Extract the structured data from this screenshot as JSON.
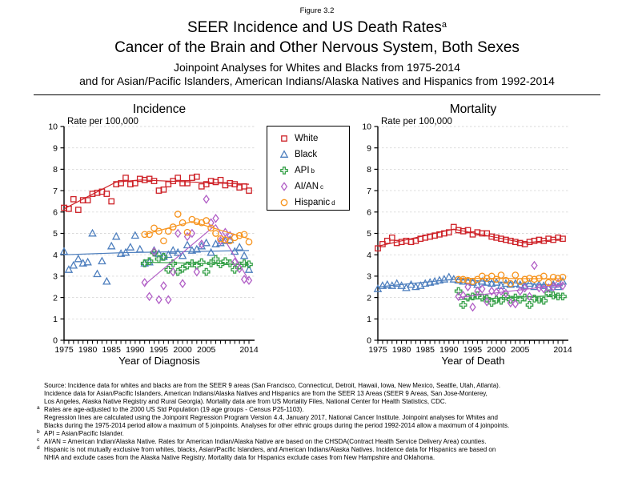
{
  "figure_label": "Figure 3.2",
  "title": {
    "line1": "SEER Incidence and US Death Rates",
    "line1_sup": "a",
    "line2": "Cancer of the Brain and Other Nervous System, Both Sexes",
    "line3": "Joinpoint Analyses for Whites and Blacks from 1975-2014",
    "line4": "and for Asian/Pacific Islanders, American Indians/Alaska Natives and Hispanics from 1992-2014"
  },
  "colors": {
    "white_series": "#CE2127",
    "black_series": "#4E7FBE",
    "api_series": "#36A048",
    "aian_series": "#B15FC6",
    "hispanic_series": "#F7941E",
    "grid": "#D9D9D9",
    "axis": "#000000"
  },
  "legend": {
    "items": [
      {
        "label": "White",
        "sup": "",
        "marker": "square",
        "color_key": "white_series"
      },
      {
        "label": "Black",
        "sup": "",
        "marker": "triangle",
        "color_key": "black_series"
      },
      {
        "label": "API",
        "sup": "b",
        "marker": "plus",
        "color_key": "api_series"
      },
      {
        "label": "AI/AN",
        "sup": "c",
        "marker": "diamond",
        "color_key": "aian_series"
      },
      {
        "label": "Hispanic",
        "sup": "d",
        "marker": "circle",
        "color_key": "hispanic_series"
      }
    ]
  },
  "chart_data": [
    {
      "type": "scatter",
      "id": "incidence",
      "title": "Incidence",
      "rate_label": "Rate per 100,000",
      "xlabel": "Year of Diagnosis",
      "xlim": [
        1975,
        2014
      ],
      "ylim": [
        0,
        10
      ],
      "yticks": [
        0,
        1,
        2,
        3,
        4,
        5,
        6,
        7,
        8,
        9,
        10
      ],
      "xtick_labels": [
        1975,
        1980,
        1985,
        1990,
        1995,
        2000,
        2005,
        2014
      ],
      "grid": "horizontal",
      "legend_position": "outside-right",
      "series": [
        {
          "name": "White",
          "marker": "square",
          "color_key": "white_series",
          "start_year": 1975,
          "values": [
            6.2,
            6.15,
            6.6,
            6.1,
            6.55,
            6.55,
            6.85,
            6.9,
            6.95,
            6.85,
            6.5,
            7.3,
            7.35,
            7.6,
            7.3,
            7.35,
            7.55,
            7.5,
            7.55,
            7.45,
            7.0,
            7.05,
            7.3,
            7.45,
            7.6,
            7.35,
            7.35,
            7.6,
            7.65,
            7.2,
            7.3,
            7.45,
            7.4,
            7.5,
            7.25,
            7.35,
            7.3,
            7.15,
            7.2,
            7.0
          ],
          "trend": [
            [
              1975,
              6.15
            ],
            [
              1986,
              7.4
            ],
            [
              1991,
              7.5
            ],
            [
              2014,
              7.3
            ]
          ]
        },
        {
          "name": "Black",
          "marker": "triangle",
          "color_key": "black_series",
          "start_year": 1975,
          "values": [
            4.15,
            3.3,
            3.5,
            3.8,
            3.6,
            3.65,
            5.0,
            3.1,
            3.7,
            2.75,
            4.4,
            4.85,
            4.05,
            4.1,
            4.35,
            4.9,
            4.25,
            3.6,
            3.65,
            4.2,
            4.05,
            3.9,
            4.0,
            4.2,
            4.1,
            3.95,
            4.45,
            4.2,
            4.25,
            4.4,
            4.55,
            4.1,
            4.5,
            4.55,
            4.65,
            4.7,
            4.15,
            4.35,
            3.95,
            3.3
          ],
          "trend": [
            [
              1975,
              4.0
            ],
            [
              1988,
              4.1
            ],
            [
              2014,
              4.2
            ]
          ]
        },
        {
          "name": "API",
          "marker": "plus",
          "color_key": "api_series",
          "start_year": 1992,
          "values": [
            3.6,
            3.7,
            4.1,
            3.8,
            3.9,
            3.3,
            3.6,
            3.2,
            3.35,
            3.5,
            3.6,
            3.5,
            3.65,
            3.2,
            3.6,
            3.8,
            3.55,
            3.7,
            3.6,
            3.3,
            3.5,
            3.6,
            3.55
          ],
          "trend": [
            [
              1992,
              3.65
            ],
            [
              2014,
              3.55
            ]
          ]
        },
        {
          "name": "AI/AN",
          "marker": "diamond",
          "color_key": "aian_series",
          "start_year": 1992,
          "values": [
            2.7,
            2.05,
            4.15,
            1.9,
            2.55,
            1.9,
            3.2,
            5.0,
            2.65,
            4.85,
            5.0,
            3.2,
            4.5,
            6.6,
            5.5,
            5.7,
            4.65,
            5.05,
            4.9,
            3.65,
            3.35,
            2.85,
            2.8
          ],
          "trend": [
            [
              1992,
              2.6
            ],
            [
              2007,
              5.4
            ],
            [
              2014,
              2.8
            ]
          ]
        },
        {
          "name": "Hispanic",
          "marker": "circle",
          "color_key": "hispanic_series",
          "start_year": 1992,
          "values": [
            4.95,
            4.95,
            5.25,
            5.1,
            4.65,
            5.1,
            5.3,
            5.9,
            5.5,
            5.05,
            5.65,
            5.55,
            5.5,
            5.6,
            5.25,
            5.0,
            4.75,
            4.7,
            4.65,
            4.8,
            4.9,
            4.95,
            4.6
          ],
          "trend": [
            [
              1992,
              4.95
            ],
            [
              2002,
              5.55
            ],
            [
              2014,
              4.75
            ]
          ]
        }
      ]
    },
    {
      "type": "scatter",
      "id": "mortality",
      "title": "Mortality",
      "rate_label": "Rate per 100,000",
      "xlabel": "Year of Death",
      "xlim": [
        1975,
        2014
      ],
      "ylim": [
        0,
        10
      ],
      "yticks": [
        0,
        1,
        2,
        3,
        4,
        5,
        6,
        7,
        8,
        9,
        10
      ],
      "xtick_labels": [
        1975,
        1980,
        1985,
        1990,
        1995,
        2000,
        2005,
        2014
      ],
      "grid": "horizontal",
      "legend_position": "none",
      "series": [
        {
          "name": "White",
          "marker": "square",
          "color_key": "white_series",
          "start_year": 1975,
          "values": [
            4.3,
            4.5,
            4.65,
            4.8,
            4.55,
            4.6,
            4.65,
            4.6,
            4.65,
            4.75,
            4.8,
            4.85,
            4.9,
            4.95,
            5.0,
            5.05,
            5.3,
            5.15,
            5.1,
            5.15,
            4.95,
            5.05,
            5.0,
            5.0,
            4.85,
            4.8,
            4.75,
            4.7,
            4.65,
            4.6,
            4.55,
            4.5,
            4.6,
            4.65,
            4.7,
            4.65,
            4.75,
            4.7,
            4.8,
            4.75
          ],
          "trend": [
            [
              1975,
              4.4
            ],
            [
              1991,
              5.2
            ],
            [
              2006,
              4.55
            ],
            [
              2014,
              4.75
            ]
          ]
        },
        {
          "name": "Black",
          "marker": "triangle",
          "color_key": "black_series",
          "start_year": 1975,
          "values": [
            2.4,
            2.55,
            2.6,
            2.55,
            2.65,
            2.55,
            2.45,
            2.6,
            2.5,
            2.55,
            2.65,
            2.7,
            2.75,
            2.8,
            2.85,
            2.95,
            2.85,
            2.8,
            2.75,
            2.75,
            2.7,
            2.6,
            2.75,
            2.7,
            2.65,
            2.7,
            2.55,
            2.65,
            2.6,
            2.65,
            2.6,
            2.55,
            2.65,
            2.5,
            2.6,
            2.55,
            2.45,
            2.6,
            2.5,
            2.75
          ],
          "trend": [
            [
              1975,
              2.5
            ],
            [
              1991,
              2.85
            ],
            [
              2014,
              2.55
            ]
          ]
        },
        {
          "name": "API",
          "marker": "plus",
          "color_key": "api_series",
          "start_year": 1992,
          "values": [
            2.3,
            1.65,
            2.0,
            2.05,
            2.1,
            2.0,
            1.95,
            1.75,
            1.9,
            1.85,
            2.05,
            1.9,
            2.0,
            1.9,
            2.0,
            1.65,
            1.95,
            1.9,
            1.85,
            2.2,
            2.1,
            2.05,
            2.05
          ],
          "trend": [
            [
              1992,
              1.9
            ],
            [
              2014,
              2.1
            ]
          ]
        },
        {
          "name": "AI/AN",
          "marker": "diamond",
          "color_key": "aian_series",
          "start_year": 1992,
          "values": [
            2.05,
            2.1,
            2.5,
            1.55,
            2.3,
            2.4,
            1.8,
            2.3,
            2.25,
            2.3,
            2.2,
            1.75,
            1.7,
            2.3,
            2.45,
            2.05,
            3.5,
            2.45,
            2.4,
            2.45,
            2.5,
            2.65,
            2.55
          ],
          "trend": [
            [
              1992,
              2.0
            ],
            [
              2014,
              2.6
            ]
          ]
        },
        {
          "name": "Hispanic",
          "marker": "circle",
          "color_key": "hispanic_series",
          "start_year": 1992,
          "values": [
            2.85,
            2.85,
            2.8,
            2.75,
            2.85,
            3.0,
            2.9,
            3.0,
            2.85,
            3.05,
            2.8,
            2.65,
            3.05,
            2.75,
            2.85,
            2.9,
            2.85,
            2.9,
            3.0,
            2.7,
            2.95,
            2.9,
            2.95
          ],
          "trend": [
            [
              1992,
              2.9
            ],
            [
              2014,
              2.88
            ]
          ]
        }
      ]
    }
  ],
  "footnotes": [
    {
      "sup": "",
      "text": "Source:  Incidence data for whites and blacks are from the SEER 9 areas (San Francisco, Connecticut, Detroit, Hawaii, Iowa, New Mexico, Seattle, Utah, Atlanta)."
    },
    {
      "sup": "",
      "text": "Incidence data for Asian/Pacific Islanders, American Indians/Alaska Natives and Hispanics are from the SEER 13 Areas (SEER 9 Areas, San Jose-Monterey,"
    },
    {
      "sup": "",
      "text": "Los Angeles, Alaska Native Registry and Rural Georgia).  Mortality data are from US Mortality Files, National Center for Health Statistics, CDC."
    },
    {
      "sup": "a",
      "text": "Rates are age-adjusted to the 2000 US Std Population (19 age groups - Census P25-1103)."
    },
    {
      "sup": "",
      "text": "Regression lines are calculated using the Joinpoint Regression Program Version 4.4, January 2017, National Cancer Institute.  Joinpoint analyses for Whites and"
    },
    {
      "sup": "",
      "text": "Blacks during the 1975-2014 period allow a maximum of 5 joinpoints. Analyses for other ethnic groups during the period 1992-2014 allow a maximum of 4 joinpoints."
    },
    {
      "sup": "b",
      "text": "API = Asian/Pacific Islander."
    },
    {
      "sup": "c",
      "text": "AI/AN = American Indian/Alaska Native.  Rates for American Indian/Alaska Native are based on the CHSDA(Contract Health Service Delivery Area) counties."
    },
    {
      "sup": "d",
      "text": "Hispanic is not mutually exclusive from whites, blacks, Asian/Pacific Islanders, and American Indians/Alaska Natives.  Incidence data for Hispanics are based on"
    },
    {
      "sup": "",
      "text": "NHIA and exclude cases from the Alaska Native Registry.  Mortality data for Hispanics exclude cases from New Hampshire and Oklahoma."
    }
  ]
}
